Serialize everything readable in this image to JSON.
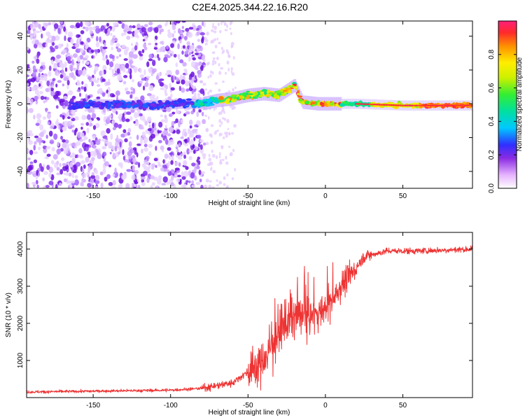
{
  "title": "C2E4.2025.344.22.16.R20",
  "chart_data": [
    {
      "type": "heatmap",
      "xlabel": "Height of straight line (km)",
      "ylabel": "Frequency (Hz)",
      "xlim": [
        -193,
        95
      ],
      "ylim": [
        -50,
        49
      ],
      "xticks": [
        -150,
        -100,
        -50,
        0,
        50
      ],
      "yticks": [
        -40,
        -20,
        0,
        20,
        40
      ],
      "colorbar": {
        "label": "Normalized spectral amplitude",
        "range": [
          0,
          1
        ],
        "ticks": [
          0.0,
          0.2,
          0.4,
          0.6,
          0.8
        ]
      },
      "noise_region_x": [
        -193,
        -78
      ],
      "ridge": [
        {
          "x": -160,
          "f": 0
        },
        {
          "x": -110,
          "f": -1
        },
        {
          "x": -95,
          "f": 0
        },
        {
          "x": -80,
          "f": 0
        },
        {
          "x": -70,
          "f": 2
        },
        {
          "x": -60,
          "f": 3
        },
        {
          "x": -50,
          "f": 5
        },
        {
          "x": -40,
          "f": 6
        },
        {
          "x": -30,
          "f": 5
        },
        {
          "x": -20,
          "f": 11
        },
        {
          "x": -15,
          "f": 1
        },
        {
          "x": -5,
          "f": 0
        },
        {
          "x": 0,
          "f": 0
        },
        {
          "x": 20,
          "f": 0
        },
        {
          "x": 50,
          "f": -1
        },
        {
          "x": 95,
          "f": -1
        }
      ]
    },
    {
      "type": "line",
      "xlabel": "Height of straight line (km)",
      "ylabel": "SNR (10 * v/v)",
      "xlim": [
        -193,
        95
      ],
      "ylim": [
        0,
        4450
      ],
      "xticks": [
        -150,
        -100,
        -50,
        0,
        50
      ],
      "yticks": [
        1000,
        2000,
        3000,
        4000
      ],
      "color": "#ee3333",
      "series_trend": [
        {
          "x": -193,
          "y": 150
        },
        {
          "x": -100,
          "y": 200
        },
        {
          "x": -80,
          "y": 250
        },
        {
          "x": -60,
          "y": 400
        },
        {
          "x": -40,
          "y": 1000
        },
        {
          "x": -30,
          "y": 1800
        },
        {
          "x": -20,
          "y": 2200
        },
        {
          "x": -10,
          "y": 2200
        },
        {
          "x": 0,
          "y": 2400
        },
        {
          "x": 10,
          "y": 3000
        },
        {
          "x": 20,
          "y": 3500
        },
        {
          "x": 25,
          "y": 3800
        },
        {
          "x": 40,
          "y": 3950
        },
        {
          "x": 60,
          "y": 3950
        },
        {
          "x": 95,
          "y": 4000
        }
      ]
    }
  ]
}
